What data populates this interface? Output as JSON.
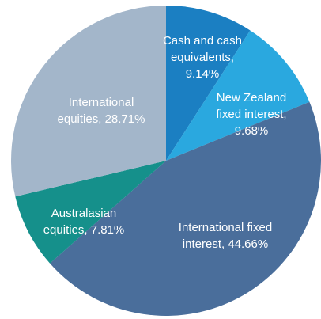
{
  "chart_data": {
    "type": "pie",
    "labels": [
      [
        "Cash and cash",
        "equivalents,",
        "9.14%"
      ],
      [
        "New Zealand",
        "fixed interest,",
        "9.68%"
      ],
      [
        "International fixed",
        "interest, 44.66%"
      ],
      [
        "Australasian",
        "equities, 7.81%"
      ],
      [
        "International",
        "equities, 28.71%"
      ]
    ],
    "values": [
      9.14,
      9.68,
      44.66,
      7.81,
      28.71
    ],
    "colors": [
      "#1b7fc2",
      "#2aa8df",
      "#4a6e9b",
      "#15908b",
      "#a3b6ca"
    ]
  }
}
